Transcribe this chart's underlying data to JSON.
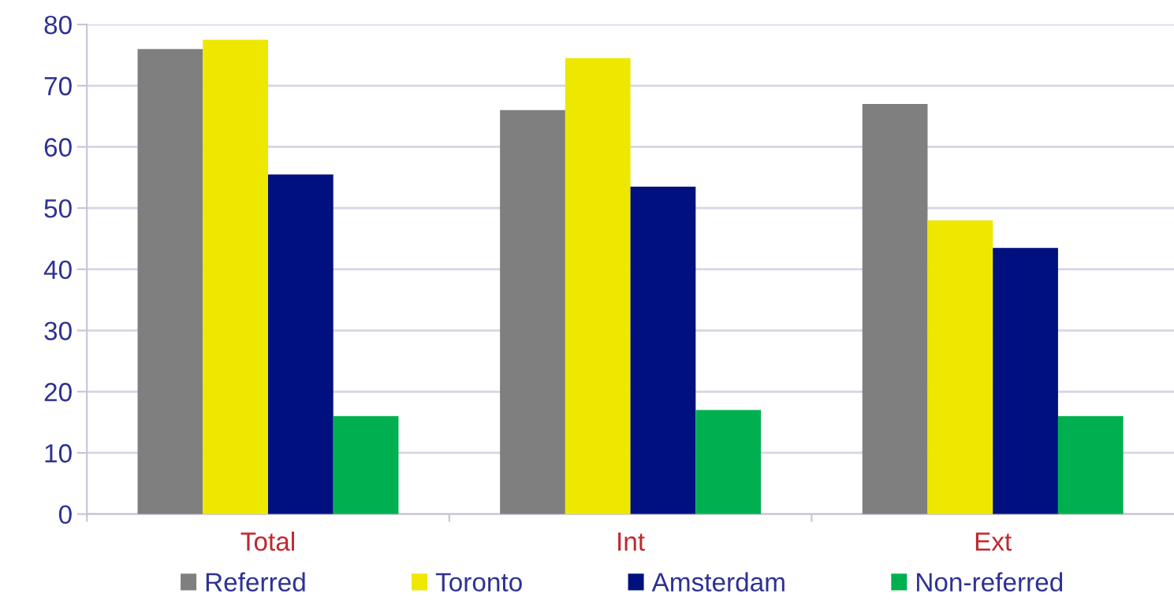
{
  "chart_data": {
    "type": "bar",
    "categories": [
      "Total",
      "Int",
      "Ext"
    ],
    "series": [
      {
        "name": "Referred",
        "color": "#7f7f7f",
        "values": [
          76,
          66,
          67
        ]
      },
      {
        "name": "Toronto",
        "color": "#eee800",
        "values": [
          77.5,
          74.5,
          48
        ]
      },
      {
        "name": "Amsterdam",
        "color": "#00117f",
        "values": [
          55.5,
          53.5,
          43.5
        ]
      },
      {
        "name": "Non-referred",
        "color": "#00b050",
        "values": [
          16,
          17,
          16
        ]
      }
    ],
    "ylim": [
      0,
      80
    ],
    "yticks": [
      0,
      10,
      20,
      30,
      40,
      50,
      60,
      70,
      80
    ],
    "grid": "y",
    "legend": "bottom"
  }
}
